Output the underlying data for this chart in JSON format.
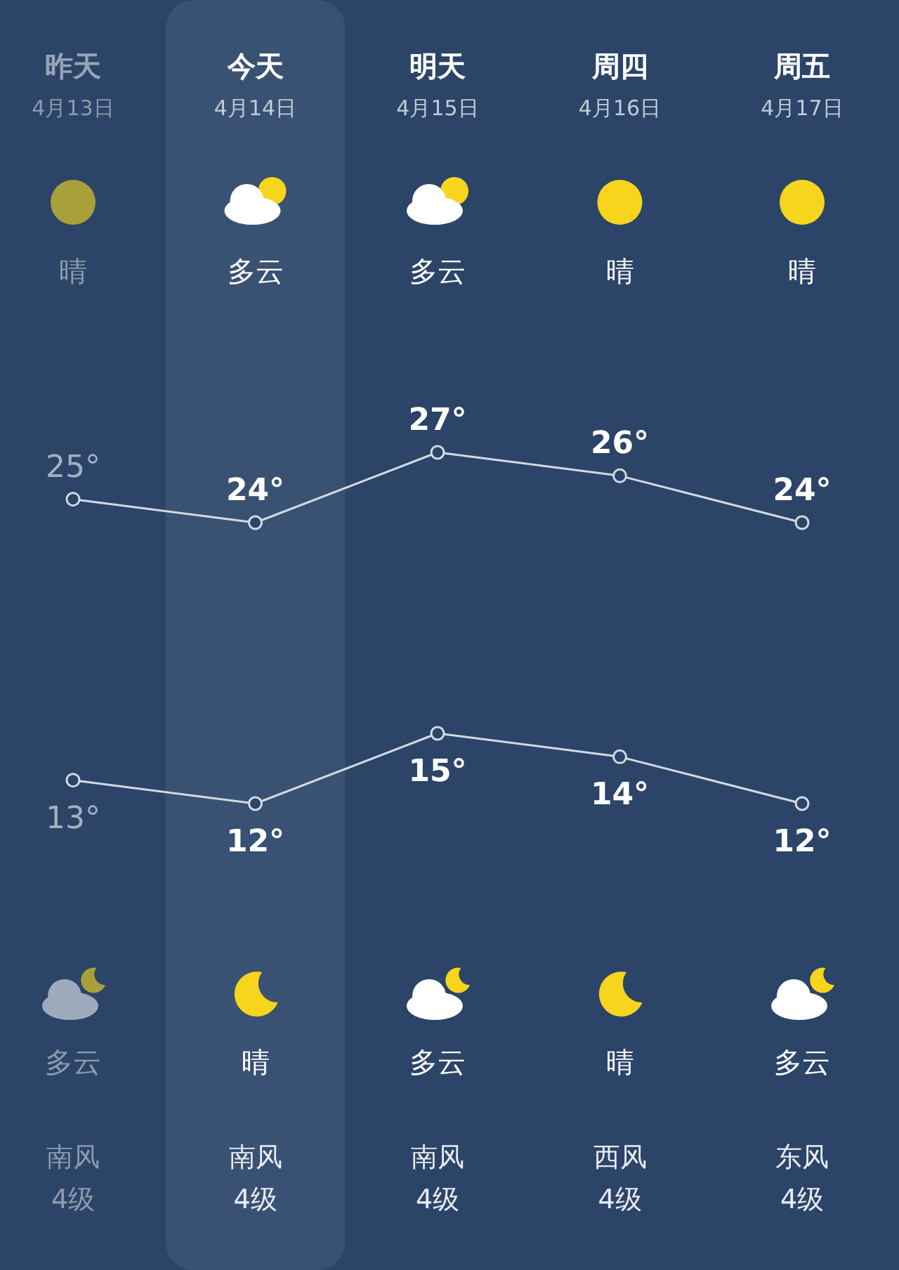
{
  "chart_data": {
    "type": "line",
    "categories": [
      "昨天",
      "今天",
      "明天",
      "周四",
      "周五"
    ],
    "series": [
      {
        "color": "#d4d9e2",
        "values": [
          25,
          24,
          27,
          26,
          24
        ],
        "value_labels": [
          "25°",
          "24°",
          "27°",
          "26°",
          "24°"
        ]
      },
      {
        "color": "#d4d9e2",
        "values": [
          13,
          12,
          15,
          14,
          12
        ],
        "value_labels": [
          "13°",
          "12°",
          "15°",
          "14°",
          "12°"
        ]
      }
    ],
    "marker": "circle",
    "bands": [
      {
        "axis": "x",
        "from": "今天",
        "to": "今天",
        "color": "#ffffff"
      }
    ],
    "annotations": [
      "4月13日",
      "4月14日",
      "4月15日",
      "4月16日",
      "4月17日",
      "晴",
      "多云",
      "多云",
      "晴",
      "晴",
      "多云",
      "晴",
      "多云",
      "晴",
      "多云",
      "南风",
      "南风",
      "南风",
      "西风",
      "东风",
      "4级",
      "4级",
      "4级",
      "4级",
      "4级"
    ]
  }
}
